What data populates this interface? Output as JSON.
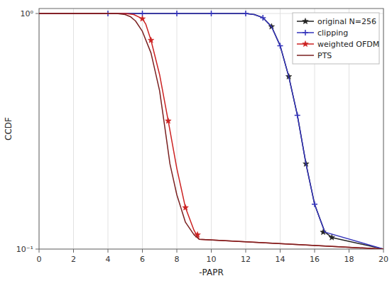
{
  "chart_data": {
    "type": "line",
    "xlabel": "-PAPR",
    "ylabel": "CCDF",
    "log": "y",
    "grid": true,
    "legend": "upper right",
    "xlim": [
      0,
      20
    ],
    "xticks": [
      0,
      2,
      4,
      6,
      8,
      10,
      12,
      14,
      16,
      18,
      20
    ],
    "ylim": [
      0.1,
      1.05
    ],
    "yticks": [
      {
        "value": 0.1,
        "label": "10⁻¹"
      },
      {
        "value": 1.0,
        "label": "10⁰"
      }
    ],
    "series": [
      {
        "name": "original N=256",
        "color": "#222222",
        "marker": "star",
        "x": [
          0,
          12.0,
          12.5,
          13.0,
          13.5,
          14.0,
          14.5,
          15.0,
          15.5,
          16.0,
          16.3,
          16.6,
          17.0,
          20
        ],
        "values": [
          1.0,
          1.0,
          0.99,
          0.96,
          0.88,
          0.73,
          0.54,
          0.37,
          0.23,
          0.155,
          0.135,
          0.118,
          0.112,
          0.1
        ],
        "marker_x": [
          13.5,
          14.5,
          15.5,
          16.5,
          17.0
        ],
        "marker_values": [
          0.88,
          0.54,
          0.23,
          0.118,
          0.112
        ]
      },
      {
        "name": "clipping",
        "color": "#3333bb",
        "marker": "plus",
        "x": [
          0,
          4.0,
          8.0,
          10.0,
          11.0,
          12.0,
          12.5,
          13.0,
          13.5,
          14.0,
          14.5,
          15.0,
          15.5,
          16.0,
          16.3,
          16.6,
          20
        ],
        "values": [
          1.0,
          1.0,
          1.0,
          1.0,
          1.0,
          1.0,
          0.99,
          0.96,
          0.88,
          0.73,
          0.54,
          0.37,
          0.23,
          0.155,
          0.135,
          0.118,
          0.1
        ],
        "marker_x": [
          4.0,
          6.0,
          8.0,
          10.0,
          12.0,
          13.0,
          14.0,
          15.0,
          16.0
        ],
        "marker_values": [
          1.0,
          1.0,
          1.0,
          1.0,
          1.0,
          0.96,
          0.73,
          0.37,
          0.155
        ]
      },
      {
        "name": "weighted OFDM",
        "color": "#cc2222",
        "marker": "star",
        "x": [
          0,
          5.0,
          5.5,
          6.0,
          6.2,
          6.5,
          7.0,
          7.5,
          8.0,
          8.5,
          9.0,
          9.3,
          20
        ],
        "values": [
          1.0,
          1.0,
          0.99,
          0.95,
          0.9,
          0.77,
          0.55,
          0.35,
          0.22,
          0.15,
          0.12,
          0.11,
          0.1
        ],
        "marker_x": [
          6.0,
          6.5,
          7.5,
          8.5,
          9.2
        ],
        "marker_values": [
          0.95,
          0.77,
          0.35,
          0.15,
          0.115
        ]
      },
      {
        "name": "PTS",
        "color": "#7a2020",
        "x": [
          0,
          4.5,
          5.0,
          5.3,
          5.6,
          6.0,
          6.5,
          7.0,
          7.3,
          7.6,
          8.0,
          8.5,
          9.0,
          9.3,
          20
        ],
        "values": [
          1.0,
          1.0,
          0.99,
          0.97,
          0.93,
          0.84,
          0.68,
          0.47,
          0.33,
          0.23,
          0.17,
          0.13,
          0.115,
          0.11,
          0.1
        ]
      }
    ]
  }
}
